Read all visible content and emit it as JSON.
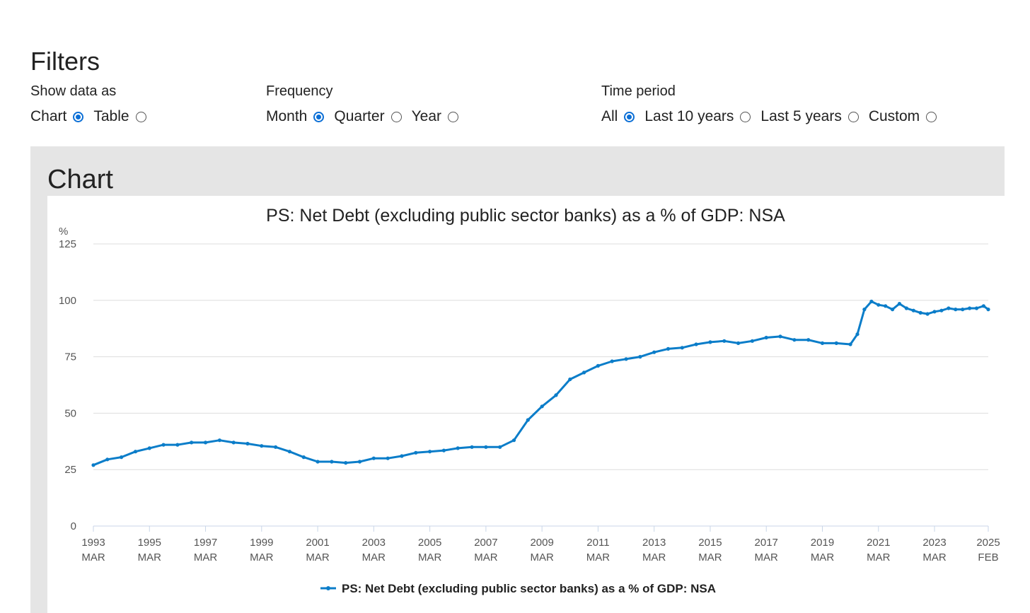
{
  "filters": {
    "title": "Filters",
    "show_data_as": {
      "label": "Show data as",
      "options": [
        {
          "label": "Chart",
          "selected": true
        },
        {
          "label": "Table",
          "selected": false
        }
      ]
    },
    "frequency": {
      "label": "Frequency",
      "options": [
        {
          "label": "Month",
          "selected": true
        },
        {
          "label": "Quarter",
          "selected": false
        },
        {
          "label": "Year",
          "selected": false
        }
      ]
    },
    "time_period": {
      "label": "Time period",
      "options": [
        {
          "label": "All",
          "selected": true
        },
        {
          "label": "Last 10 years",
          "selected": false
        },
        {
          "label": "Last 5 years",
          "selected": false
        },
        {
          "label": "Custom",
          "selected": false
        }
      ]
    }
  },
  "chart_section": {
    "heading": "Chart"
  },
  "colors": {
    "series": "#0b7dc9",
    "radio_accent": "#0b6fd6",
    "panel": "#e5e5e5",
    "grid": "#dddddd"
  },
  "chart_data": {
    "type": "line",
    "title": "PS: Net Debt (excluding public sector banks) as a % of GDP: NSA",
    "ylabel": "%",
    "xlabel": "",
    "ylim": [
      0,
      125
    ],
    "yticks": [
      0,
      25,
      50,
      75,
      100,
      125
    ],
    "grid": true,
    "legend_position": "bottom",
    "x_ticks": [
      {
        "year": "1993",
        "month": "MAR"
      },
      {
        "year": "1995",
        "month": "MAR"
      },
      {
        "year": "1997",
        "month": "MAR"
      },
      {
        "year": "1999",
        "month": "MAR"
      },
      {
        "year": "2001",
        "month": "MAR"
      },
      {
        "year": "2003",
        "month": "MAR"
      },
      {
        "year": "2005",
        "month": "MAR"
      },
      {
        "year": "2007",
        "month": "MAR"
      },
      {
        "year": "2009",
        "month": "MAR"
      },
      {
        "year": "2011",
        "month": "MAR"
      },
      {
        "year": "2013",
        "month": "MAR"
      },
      {
        "year": "2015",
        "month": "MAR"
      },
      {
        "year": "2017",
        "month": "MAR"
      },
      {
        "year": "2019",
        "month": "MAR"
      },
      {
        "year": "2021",
        "month": "MAR"
      },
      {
        "year": "2023",
        "month": "MAR"
      },
      {
        "year": "2025",
        "month": "FEB"
      }
    ],
    "series": [
      {
        "name": "PS: Net Debt (excluding public sector banks) as a % of GDP: NSA",
        "x": [
          "1993-03",
          "1993-09",
          "1994-03",
          "1994-09",
          "1995-03",
          "1995-09",
          "1996-03",
          "1996-09",
          "1997-03",
          "1997-09",
          "1998-03",
          "1998-09",
          "1999-03",
          "1999-09",
          "2000-03",
          "2000-09",
          "2001-03",
          "2001-09",
          "2002-03",
          "2002-09",
          "2003-03",
          "2003-09",
          "2004-03",
          "2004-09",
          "2005-03",
          "2005-09",
          "2006-03",
          "2006-09",
          "2007-03",
          "2007-09",
          "2008-03",
          "2008-09",
          "2009-03",
          "2009-09",
          "2010-03",
          "2010-09",
          "2011-03",
          "2011-09",
          "2012-03",
          "2012-09",
          "2013-03",
          "2013-09",
          "2014-03",
          "2014-09",
          "2015-03",
          "2015-09",
          "2016-03",
          "2016-09",
          "2017-03",
          "2017-09",
          "2018-03",
          "2018-09",
          "2019-03",
          "2019-09",
          "2020-03",
          "2020-06",
          "2020-09",
          "2020-12",
          "2021-03",
          "2021-06",
          "2021-09",
          "2021-12",
          "2022-03",
          "2022-06",
          "2022-09",
          "2022-12",
          "2023-03",
          "2023-06",
          "2023-09",
          "2023-12",
          "2024-03",
          "2024-06",
          "2024-09",
          "2024-12",
          "2025-02"
        ],
        "values": [
          27.0,
          29.5,
          30.5,
          33.0,
          34.5,
          36.0,
          36.0,
          37.0,
          37.0,
          38.0,
          37.0,
          36.5,
          35.5,
          35.0,
          33.0,
          30.5,
          28.5,
          28.5,
          28.0,
          28.5,
          30.0,
          30.0,
          31.0,
          32.5,
          33.0,
          33.5,
          34.5,
          35.0,
          35.0,
          35.0,
          38.0,
          47.0,
          53.0,
          58.0,
          65.0,
          68.0,
          71.0,
          73.0,
          74.0,
          75.0,
          77.0,
          78.5,
          79.0,
          80.5,
          81.5,
          82.0,
          81.0,
          82.0,
          83.5,
          84.0,
          82.5,
          82.5,
          81.0,
          81.0,
          80.5,
          85.0,
          96.0,
          99.5,
          98.0,
          97.5,
          96.0,
          98.5,
          96.5,
          95.5,
          94.5,
          94.0,
          95.0,
          95.5,
          96.5,
          96.0,
          96.0,
          96.5,
          96.5,
          97.5,
          96.0
        ]
      }
    ]
  }
}
